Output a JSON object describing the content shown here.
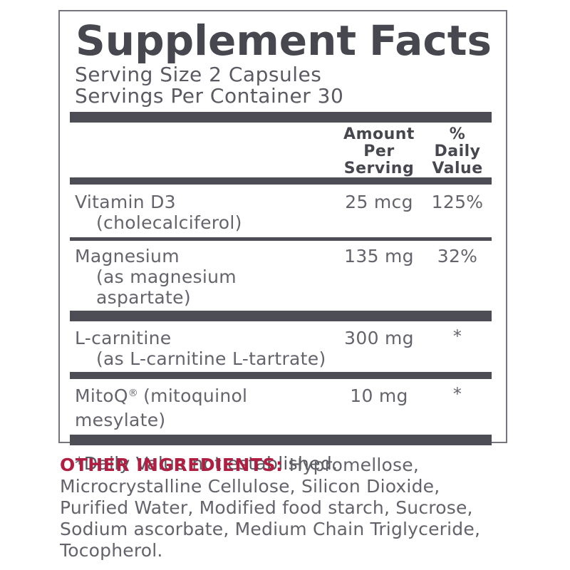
{
  "panel": {
    "title": "Supplement Facts",
    "title_word1": "Supplement",
    "title_word2": "Facts",
    "serving_size": "Serving Size 2 Capsules",
    "servings_per_container": "Servings Per Container 30",
    "header": {
      "amount": "Amount\nPer\nServing",
      "dv": "%\nDaily\nValue"
    },
    "rows": [
      {
        "name": "Vitamin D3",
        "sub": "(cholecalciferol)",
        "amount": "25 mcg",
        "dv": "125%"
      },
      {
        "name": "Magnesium",
        "sub": "(as magnesium aspartate)",
        "amount": "135 mg",
        "dv": "32%"
      },
      {
        "name": "L-carnitine",
        "sub": "(as L-carnitine L-tartrate)",
        "amount": "300 mg",
        "dv": "*"
      },
      {
        "name": "MitoQ",
        "reg": "®",
        "name2": "(mitoquinol mesylate)",
        "amount": "10 mg",
        "dv": "*"
      }
    ],
    "footnote": "*Daily Value not established."
  },
  "other_ingredients": {
    "label": "OTHER INGREDIENTS:",
    "text": " Hypromellose,\nMicrocrystalline Cellulose, Silicon Dioxide,\nPurified Water, Modified food starch, Sucrose,\nSodium ascorbate, Medium Chain Triglyceride,\nTocopherol."
  },
  "colors": {
    "accent_red": "#b01e41",
    "dark_gray": "#47474f",
    "body_gray": "#64646c",
    "bar_gray": "#4d4d55"
  }
}
